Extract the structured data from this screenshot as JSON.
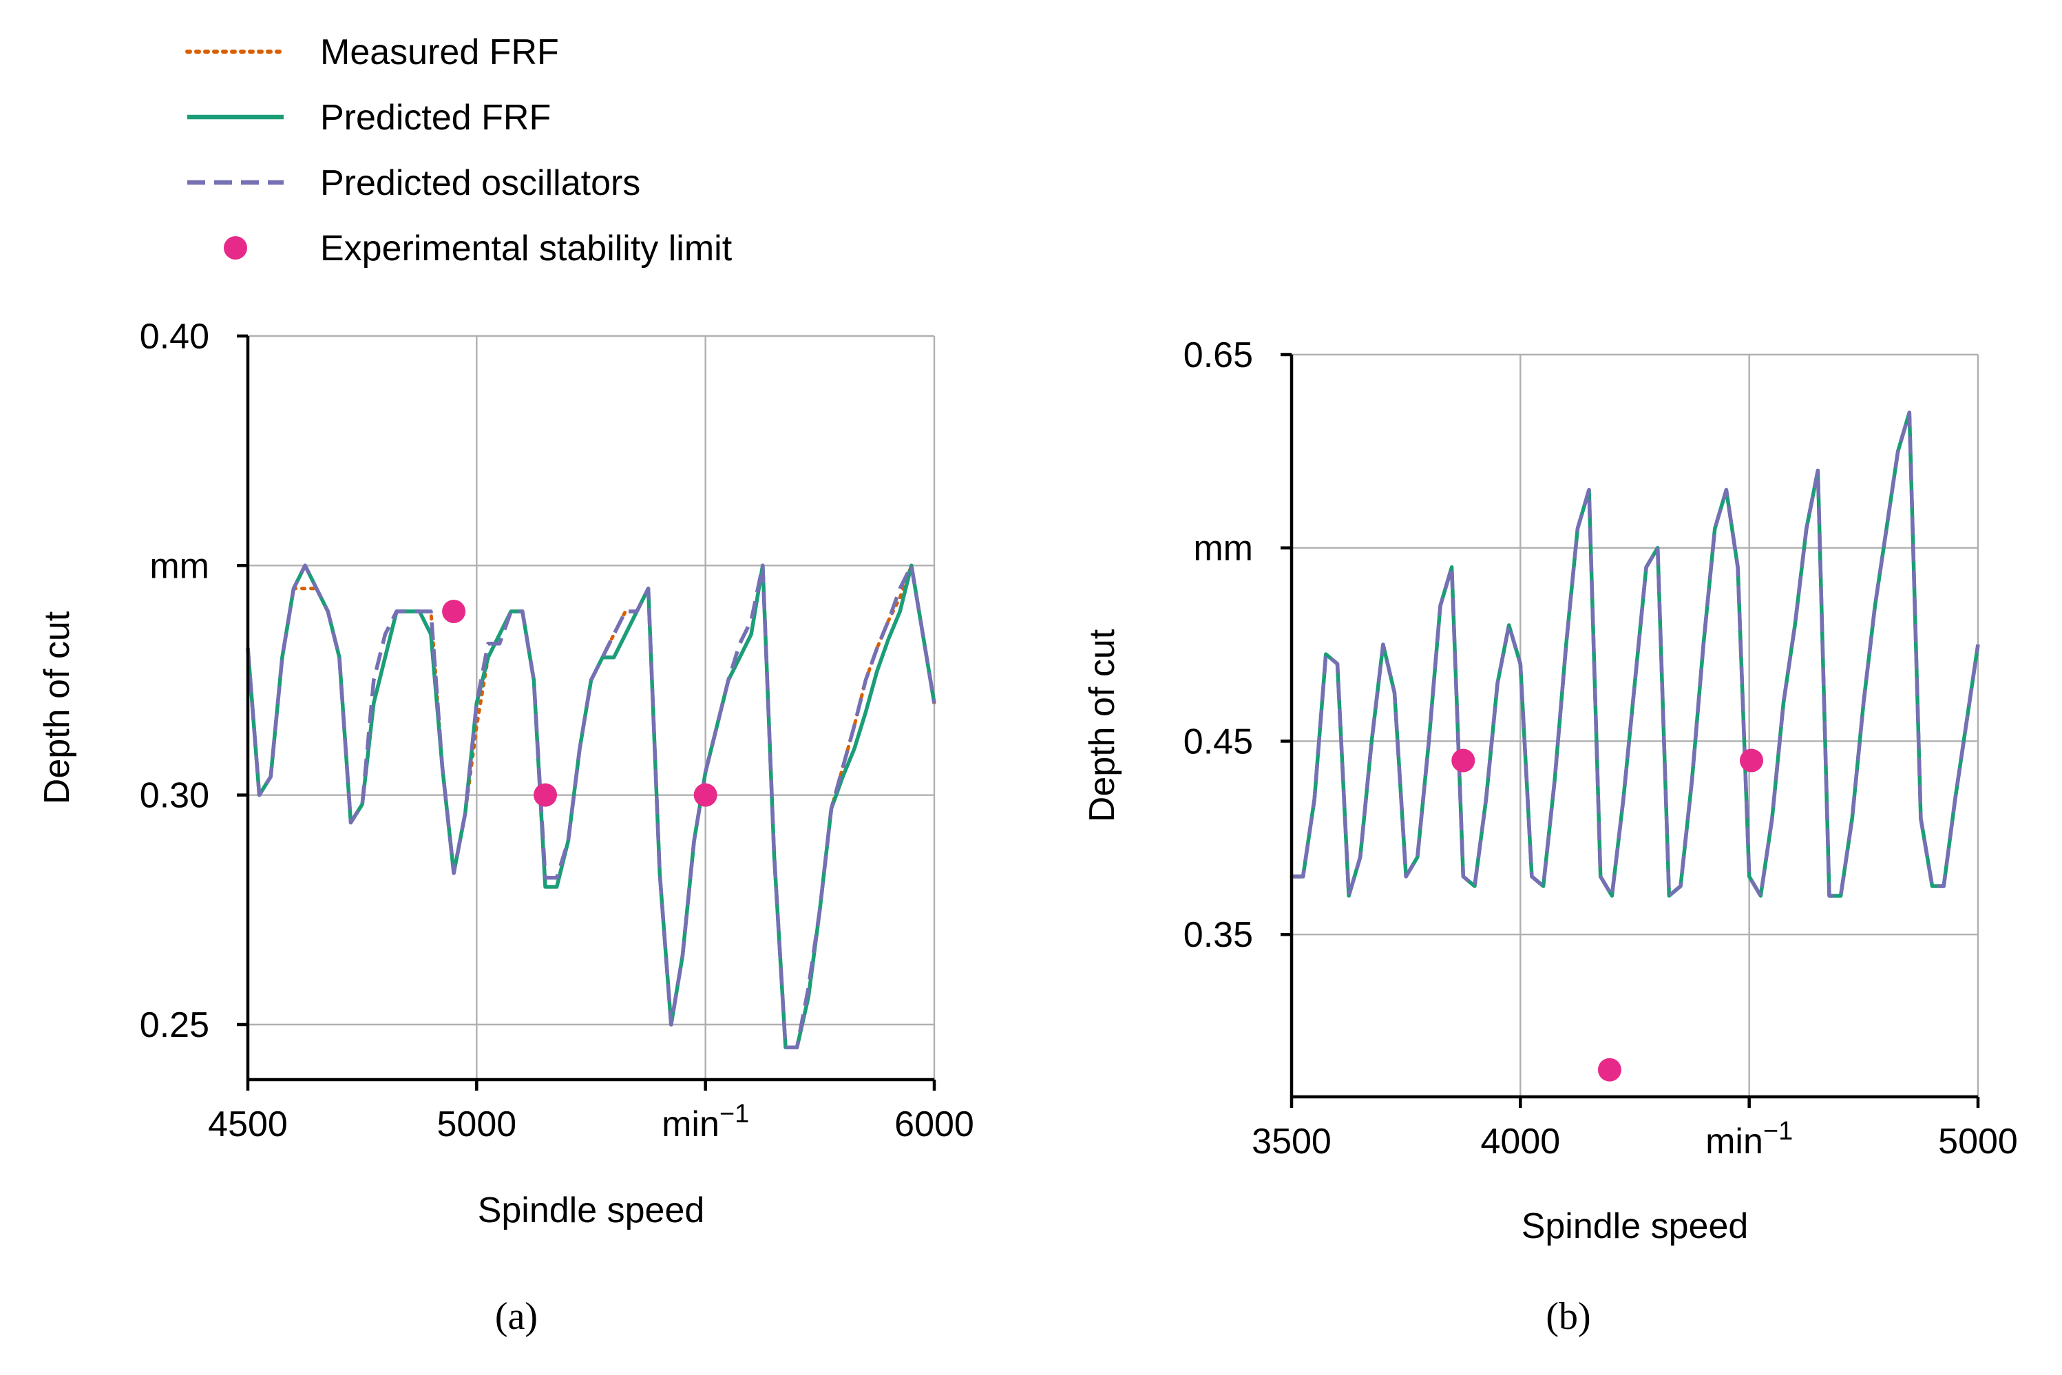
{
  "legend": {
    "items": [
      {
        "label": "Measured FRF",
        "style": "dotted",
        "color": "#d95f02"
      },
      {
        "label": "Predicted FRF",
        "style": "solid",
        "color": "#1b9e77"
      },
      {
        "label": "Predicted oscillators",
        "style": "dashed",
        "color": "#7570b3"
      },
      {
        "label": "Experimental stability limit",
        "style": "marker",
        "color": "#e7298a"
      }
    ]
  },
  "chart_data": [
    {
      "type": "line",
      "caption": "(a)",
      "xlabel": "Spindle speed",
      "ylabel": "Depth of cut",
      "xlim": [
        4500,
        6000
      ],
      "ylim": [
        0.238,
        0.4
      ],
      "xticks": [
        4500,
        5000,
        5500,
        6000
      ],
      "xtick_labels": [
        "4500",
        "5000",
        "min⁻¹",
        "6000"
      ],
      "yticks": [
        0.25,
        0.3,
        0.35,
        0.4
      ],
      "ytick_labels": [
        "0.25",
        "0.30",
        "mm",
        "0.40"
      ],
      "grid": true,
      "series": [
        {
          "name": "Measured FRF",
          "color": "#d95f02",
          "style": "dotted",
          "x": [
            4500,
            4525,
            4550,
            4575,
            4600,
            4625,
            4650,
            4675,
            4700,
            4725,
            4750,
            4775,
            4800,
            4825,
            4850,
            4875,
            4900,
            4925,
            4950,
            4975,
            5000,
            5025,
            5050,
            5075,
            5100,
            5125,
            5150,
            5175,
            5200,
            5225,
            5250,
            5275,
            5300,
            5325,
            5350,
            5375,
            5400,
            5425,
            5450,
            5475,
            5500,
            5525,
            5550,
            5575,
            5600,
            5625,
            5650,
            5675,
            5700,
            5725,
            5750,
            5775,
            5800,
            5825,
            5850,
            5875,
            5900,
            5925,
            5950,
            5975,
            6000
          ],
          "y": [
            0.332,
            0.3,
            0.304,
            0.33,
            0.345,
            0.345,
            0.345,
            0.34,
            0.33,
            0.294,
            0.298,
            0.32,
            0.33,
            0.34,
            0.34,
            0.34,
            0.34,
            0.306,
            0.283,
            0.296,
            0.315,
            0.33,
            0.335,
            0.34,
            0.34,
            0.325,
            0.28,
            0.28,
            0.29,
            0.31,
            0.325,
            0.33,
            0.335,
            0.34,
            0.34,
            0.345,
            0.283,
            0.25,
            0.265,
            0.29,
            0.305,
            0.315,
            0.325,
            0.33,
            0.335,
            0.35,
            0.287,
            0.245,
            0.245,
            0.256,
            0.275,
            0.297,
            0.306,
            0.315,
            0.325,
            0.332,
            0.338,
            0.343,
            0.35,
            0.335,
            0.32
          ]
        },
        {
          "name": "Predicted FRF",
          "color": "#1b9e77",
          "style": "solid",
          "x": [
            4500,
            4525,
            4550,
            4575,
            4600,
            4625,
            4650,
            4675,
            4700,
            4725,
            4750,
            4775,
            4800,
            4825,
            4850,
            4875,
            4900,
            4925,
            4950,
            4975,
            5000,
            5025,
            5050,
            5075,
            5100,
            5125,
            5150,
            5175,
            5200,
            5225,
            5250,
            5275,
            5300,
            5325,
            5350,
            5375,
            5400,
            5425,
            5450,
            5475,
            5500,
            5525,
            5550,
            5575,
            5600,
            5625,
            5650,
            5675,
            5700,
            5725,
            5750,
            5775,
            5800,
            5825,
            5850,
            5875,
            5900,
            5925,
            5950,
            5975,
            6000
          ],
          "y": [
            0.332,
            0.3,
            0.304,
            0.33,
            0.345,
            0.35,
            0.345,
            0.34,
            0.33,
            0.294,
            0.298,
            0.32,
            0.33,
            0.34,
            0.34,
            0.34,
            0.335,
            0.306,
            0.283,
            0.296,
            0.32,
            0.33,
            0.335,
            0.34,
            0.34,
            0.325,
            0.28,
            0.28,
            0.29,
            0.31,
            0.325,
            0.33,
            0.33,
            0.335,
            0.34,
            0.345,
            0.283,
            0.25,
            0.265,
            0.29,
            0.305,
            0.315,
            0.325,
            0.33,
            0.335,
            0.35,
            0.287,
            0.245,
            0.245,
            0.256,
            0.275,
            0.297,
            0.304,
            0.31,
            0.318,
            0.327,
            0.334,
            0.34,
            0.35,
            0.335,
            0.32
          ]
        },
        {
          "name": "Predicted oscillators",
          "color": "#7570b3",
          "style": "dashed",
          "x": [
            4500,
            4525,
            4550,
            4575,
            4600,
            4625,
            4650,
            4675,
            4700,
            4725,
            4750,
            4775,
            4800,
            4825,
            4850,
            4875,
            4900,
            4925,
            4950,
            4975,
            5000,
            5025,
            5050,
            5075,
            5100,
            5125,
            5150,
            5175,
            5200,
            5225,
            5250,
            5275,
            5300,
            5325,
            5350,
            5375,
            5400,
            5425,
            5450,
            5475,
            5500,
            5525,
            5550,
            5575,
            5600,
            5625,
            5650,
            5675,
            5700,
            5725,
            5750,
            5775,
            5800,
            5825,
            5850,
            5875,
            5900,
            5925,
            5950,
            5975,
            6000
          ],
          "y": [
            0.332,
            0.3,
            0.304,
            0.33,
            0.345,
            0.35,
            0.345,
            0.34,
            0.33,
            0.294,
            0.298,
            0.325,
            0.335,
            0.34,
            0.34,
            0.34,
            0.34,
            0.306,
            0.283,
            0.296,
            0.32,
            0.333,
            0.333,
            0.34,
            0.34,
            0.325,
            0.282,
            0.282,
            0.29,
            0.31,
            0.325,
            0.33,
            0.335,
            0.34,
            0.34,
            0.345,
            0.283,
            0.25,
            0.265,
            0.29,
            0.305,
            0.315,
            0.325,
            0.333,
            0.338,
            0.35,
            0.287,
            0.245,
            0.245,
            0.258,
            0.275,
            0.297,
            0.306,
            0.315,
            0.325,
            0.332,
            0.338,
            0.345,
            0.35,
            0.335,
            0.32
          ]
        }
      ],
      "points": {
        "name": "Experimental stability limit",
        "color": "#e7298a",
        "x": [
          4950,
          5150,
          5500
        ],
        "y": [
          0.34,
          0.3,
          0.3
        ]
      }
    },
    {
      "type": "line",
      "caption": "(b)",
      "xlabel": "Spindle speed",
      "ylabel": "Depth of cut",
      "xlim": [
        3500,
        5000
      ],
      "ylim": [
        0.266,
        0.65
      ],
      "xticks": [
        3500,
        4000,
        4500,
        5000
      ],
      "xtick_labels": [
        "3500",
        "4000",
        "min⁻¹",
        "5000"
      ],
      "yticks": [
        0.35,
        0.45,
        0.55,
        0.65
      ],
      "ytick_labels": [
        "0.35",
        "0.45",
        "mm",
        "0.65"
      ],
      "grid": true,
      "series": [
        {
          "name": "Measured FRF",
          "color": "#d95f02",
          "style": "dotted",
          "x": [
            3500,
            3525,
            3550,
            3575,
            3600,
            3625,
            3650,
            3675,
            3700,
            3725,
            3750,
            3775,
            3800,
            3825,
            3850,
            3875,
            3900,
            3925,
            3950,
            3975,
            4000,
            4025,
            4050,
            4075,
            4100,
            4125,
            4150,
            4175,
            4200,
            4225,
            4250,
            4275,
            4300,
            4325,
            4350,
            4375,
            4400,
            4425,
            4450,
            4475,
            4500,
            4525,
            4550,
            4575,
            4600,
            4625,
            4650,
            4675,
            4700,
            4725,
            4750,
            4775,
            4800,
            4825,
            4850,
            4875,
            4900,
            4925,
            4950,
            4975,
            5000
          ],
          "y": [
            0.38,
            0.38,
            0.42,
            0.495,
            0.49,
            0.37,
            0.39,
            0.45,
            0.5,
            0.475,
            0.38,
            0.39,
            0.45,
            0.52,
            0.54,
            0.38,
            0.375,
            0.42,
            0.48,
            0.51,
            0.49,
            0.38,
            0.375,
            0.43,
            0.5,
            0.56,
            0.58,
            0.38,
            0.37,
            0.42,
            0.48,
            0.54,
            0.55,
            0.37,
            0.375,
            0.43,
            0.5,
            0.56,
            0.58,
            0.54,
            0.38,
            0.37,
            0.41,
            0.47,
            0.51,
            0.56,
            0.59,
            0.37,
            0.37,
            0.41,
            0.47,
            0.52,
            0.56,
            0.6,
            0.62,
            0.41,
            0.375,
            0.375,
            0.42,
            0.46,
            0.5
          ]
        },
        {
          "name": "Predicted FRF",
          "color": "#1b9e77",
          "style": "solid",
          "x": [
            3500,
            3525,
            3550,
            3575,
            3600,
            3625,
            3650,
            3675,
            3700,
            3725,
            3750,
            3775,
            3800,
            3825,
            3850,
            3875,
            3900,
            3925,
            3950,
            3975,
            4000,
            4025,
            4050,
            4075,
            4100,
            4125,
            4150,
            4175,
            4200,
            4225,
            4250,
            4275,
            4300,
            4325,
            4350,
            4375,
            4400,
            4425,
            4450,
            4475,
            4500,
            4525,
            4550,
            4575,
            4600,
            4625,
            4650,
            4675,
            4700,
            4725,
            4750,
            4775,
            4800,
            4825,
            4850,
            4875,
            4900,
            4925,
            4950,
            4975,
            5000
          ],
          "y": [
            0.38,
            0.38,
            0.42,
            0.495,
            0.49,
            0.37,
            0.39,
            0.45,
            0.5,
            0.475,
            0.38,
            0.39,
            0.45,
            0.52,
            0.54,
            0.38,
            0.375,
            0.42,
            0.48,
            0.51,
            0.49,
            0.38,
            0.375,
            0.43,
            0.5,
            0.56,
            0.58,
            0.38,
            0.37,
            0.42,
            0.48,
            0.54,
            0.55,
            0.37,
            0.375,
            0.43,
            0.5,
            0.56,
            0.58,
            0.54,
            0.38,
            0.37,
            0.41,
            0.47,
            0.51,
            0.56,
            0.59,
            0.37,
            0.37,
            0.41,
            0.47,
            0.52,
            0.56,
            0.6,
            0.62,
            0.41,
            0.375,
            0.375,
            0.42,
            0.46,
            0.5
          ]
        },
        {
          "name": "Predicted oscillators",
          "color": "#7570b3",
          "style": "dashed",
          "x": [
            3500,
            3525,
            3550,
            3575,
            3600,
            3625,
            3650,
            3675,
            3700,
            3725,
            3750,
            3775,
            3800,
            3825,
            3850,
            3875,
            3900,
            3925,
            3950,
            3975,
            4000,
            4025,
            4050,
            4075,
            4100,
            4125,
            4150,
            4175,
            4200,
            4225,
            4250,
            4275,
            4300,
            4325,
            4350,
            4375,
            4400,
            4425,
            4450,
            4475,
            4500,
            4525,
            4550,
            4575,
            4600,
            4625,
            4650,
            4675,
            4700,
            4725,
            4750,
            4775,
            4800,
            4825,
            4850,
            4875,
            4900,
            4925,
            4950,
            4975,
            5000
          ],
          "y": [
            0.38,
            0.38,
            0.42,
            0.495,
            0.49,
            0.37,
            0.39,
            0.45,
            0.5,
            0.475,
            0.38,
            0.39,
            0.45,
            0.52,
            0.54,
            0.38,
            0.375,
            0.42,
            0.48,
            0.51,
            0.49,
            0.38,
            0.375,
            0.43,
            0.5,
            0.56,
            0.58,
            0.38,
            0.37,
            0.42,
            0.48,
            0.54,
            0.55,
            0.37,
            0.375,
            0.43,
            0.5,
            0.56,
            0.58,
            0.54,
            0.38,
            0.37,
            0.41,
            0.47,
            0.51,
            0.56,
            0.59,
            0.37,
            0.37,
            0.41,
            0.47,
            0.52,
            0.56,
            0.6,
            0.62,
            0.41,
            0.375,
            0.375,
            0.42,
            0.46,
            0.5
          ]
        }
      ],
      "points": {
        "name": "Experimental stability limit",
        "color": "#e7298a",
        "x": [
          3875,
          4195,
          4505
        ],
        "y": [
          0.44,
          0.28,
          0.44
        ]
      }
    }
  ]
}
